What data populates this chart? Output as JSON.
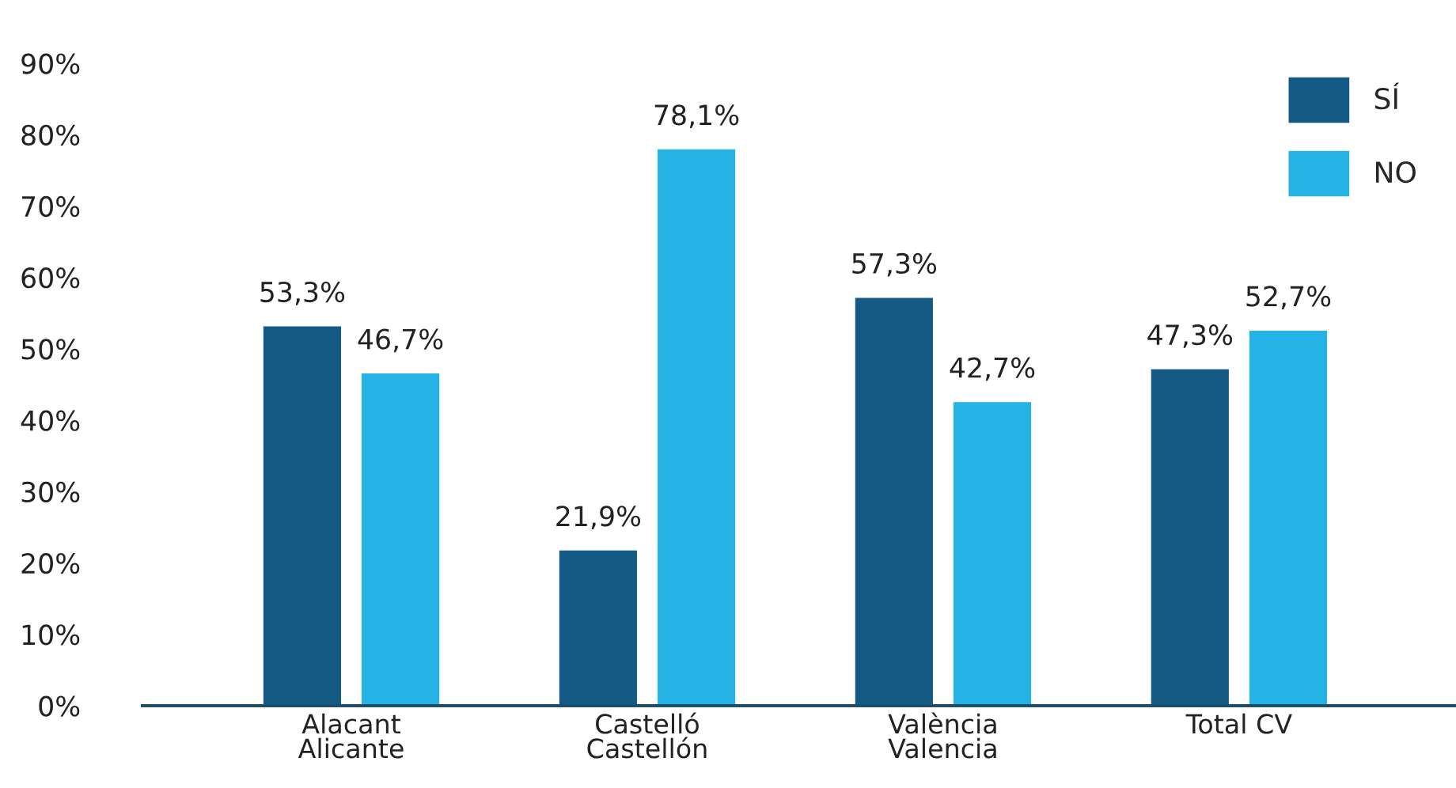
{
  "chart_data": {
    "type": "bar",
    "categories": [
      "Alacant\nAlicante",
      "Castelló\nCastellón",
      "València\nValencia",
      "Total CV"
    ],
    "series": [
      {
        "name": "SÍ",
        "color": "#135a85",
        "values": [
          53.3,
          21.9,
          57.3,
          47.3
        ],
        "value_labels": [
          "53,3%",
          "21,9%",
          "57,3%",
          "47,3%"
        ]
      },
      {
        "name": "NO",
        "color": "#25b3e6",
        "values": [
          46.7,
          78.1,
          42.7,
          52.7
        ],
        "value_labels": [
          "46,7%",
          "78,1%",
          "42,7%",
          "52,7%"
        ]
      }
    ],
    "ylim": [
      0,
      90
    ],
    "yticks": [
      {
        "value": 0,
        "label": "0%"
      },
      {
        "value": 10,
        "label": "10%"
      },
      {
        "value": 20,
        "label": "20%"
      },
      {
        "value": 30,
        "label": "30%"
      },
      {
        "value": 40,
        "label": "40%"
      },
      {
        "value": 50,
        "label": "50%"
      },
      {
        "value": 60,
        "label": "60%"
      },
      {
        "value": 70,
        "label": "70%"
      },
      {
        "value": 80,
        "label": "80%"
      },
      {
        "value": 90,
        "label": "90%"
      }
    ],
    "grid": false,
    "legend": "top right"
  }
}
